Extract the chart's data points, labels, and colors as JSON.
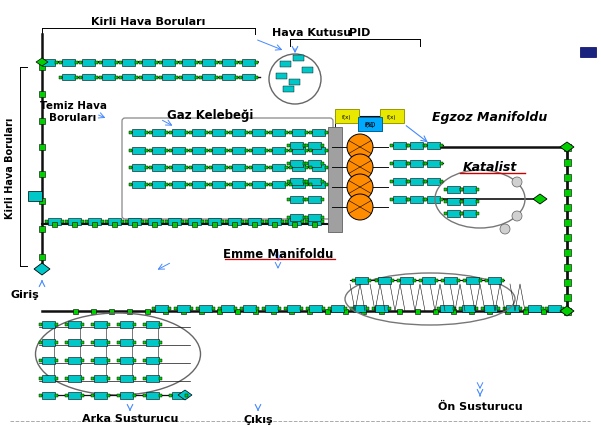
{
  "labels": {
    "kirli_hava_borulari_top": "Kirli Hava Boruları",
    "kirli_hava_borulari_side": "Kirli Hava Boruları",
    "temiz_hava_borulari": "Temiz Hava\nBoruları",
    "gaz_kelebegi": "Gaz Kelebeği",
    "hava_kutusu": "Hava Kutusu",
    "pid": "PID",
    "egzoz_manifoldu": "Egzoz Manifoldu",
    "katalist": "Katalist",
    "emme_manifoldu": "Emme Manifoldu",
    "giris": "Giriş",
    "on_susturucu": "Ön Susturucu",
    "arka_susturucu": "Arka Susturucu",
    "cikis": "Çıkış"
  },
  "white_bg": "#ffffff",
  "teal": "#00c8c8",
  "green": "#00d000",
  "yellow": "#e8e800",
  "orange": "#ff8c00",
  "dark": "#101010",
  "blue_arrow": "#4488ff",
  "gray_sensor": "#b0b0b0"
}
